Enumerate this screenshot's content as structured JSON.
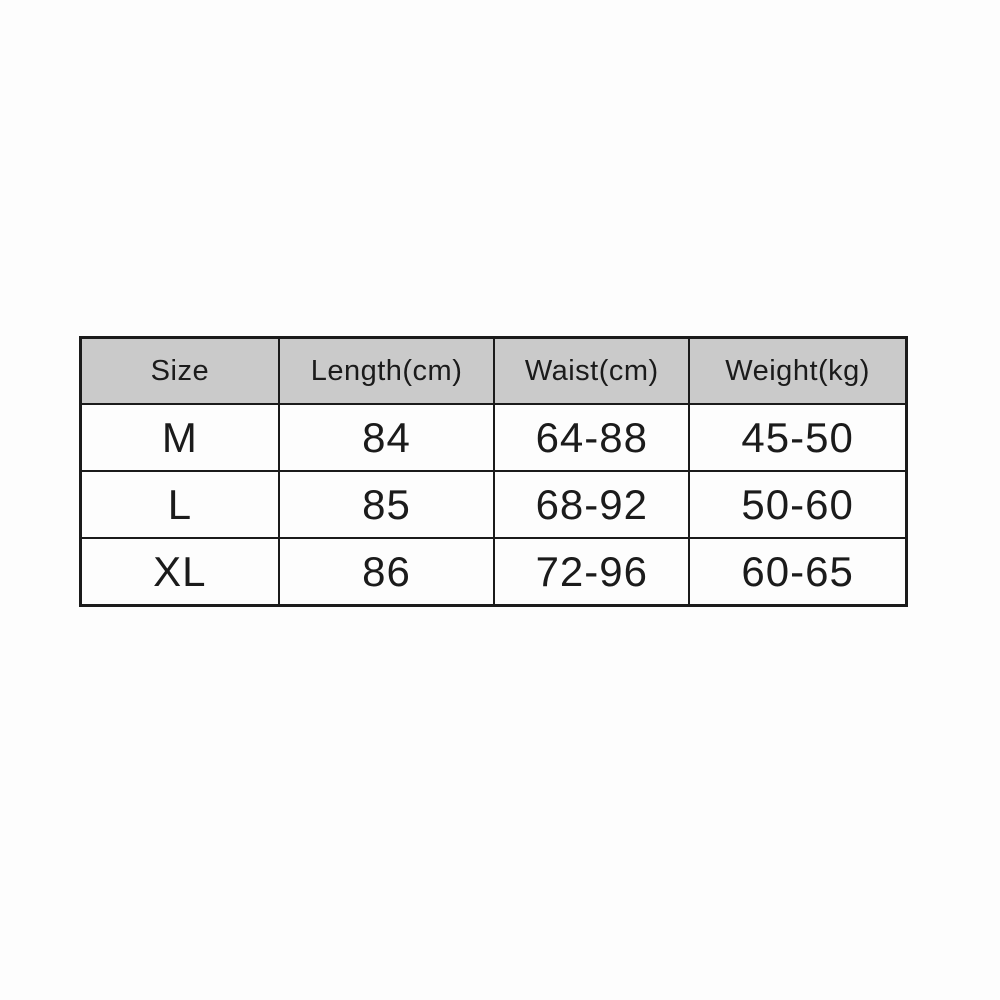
{
  "page": {
    "background_color": "#fdfdfd",
    "text_color": "#1b1b1b",
    "table_border_color": "#1b1b1b",
    "header_background_color": "#cacaca"
  },
  "chart_data": {
    "type": "table",
    "title": "",
    "columns": [
      "Size",
      "Length(cm)",
      "Waist(cm)",
      "Weight(kg)"
    ],
    "rows": [
      [
        "M",
        "84",
        "64-88",
        "45-50"
      ],
      [
        "L",
        "85",
        "68-92",
        "50-60"
      ],
      [
        "XL",
        "86",
        "72-96",
        "60-65"
      ]
    ]
  }
}
